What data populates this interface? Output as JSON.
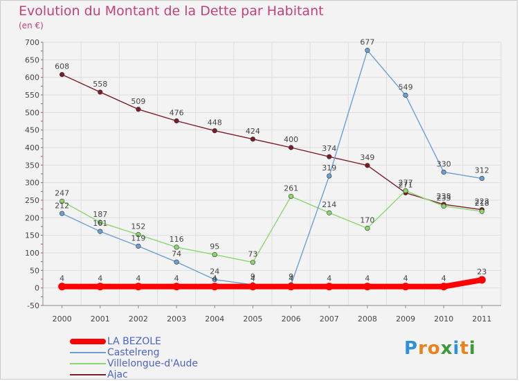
{
  "title": "Evolution du Montant de la Dette par Habitant",
  "unit": "(en €)",
  "logo": "Proxiti",
  "chart_data": {
    "type": "line",
    "title": "Evolution du Montant de la Dette par Habitant",
    "ylabel": "(en €)",
    "xlabel": "",
    "x": [
      "2000",
      "2001",
      "2002",
      "2003",
      "2004",
      "2005",
      "2006",
      "2007",
      "2008",
      "2009",
      "2010",
      "2011"
    ],
    "ylim": [
      -50,
      700
    ],
    "yticks": [
      -50,
      0,
      50,
      100,
      150,
      200,
      250,
      300,
      350,
      400,
      450,
      500,
      550,
      600,
      650,
      700
    ],
    "grid": true,
    "legend_position": "bottom-left",
    "series": [
      {
        "name": "LA BEZOLE",
        "color": "#ff0000",
        "values": [
          4,
          4,
          4,
          4,
          4,
          4,
          4,
          4,
          4,
          4,
          4,
          23
        ]
      },
      {
        "name": "Castelreng",
        "color": "#6a9fd4",
        "values": [
          212,
          161,
          119,
          74,
          24,
          9,
          9,
          319,
          677,
          549,
          330,
          312
        ]
      },
      {
        "name": "Villelongue-d'Aude",
        "color": "#8cd66e",
        "values": [
          247,
          187,
          152,
          116,
          95,
          73,
          261,
          214,
          170,
          277,
          233,
          218
        ]
      },
      {
        "name": "Ajac",
        "color": "#7a1c2a",
        "values": [
          608,
          558,
          509,
          476,
          448,
          424,
          400,
          374,
          349,
          271,
          238,
          223
        ]
      }
    ]
  }
}
